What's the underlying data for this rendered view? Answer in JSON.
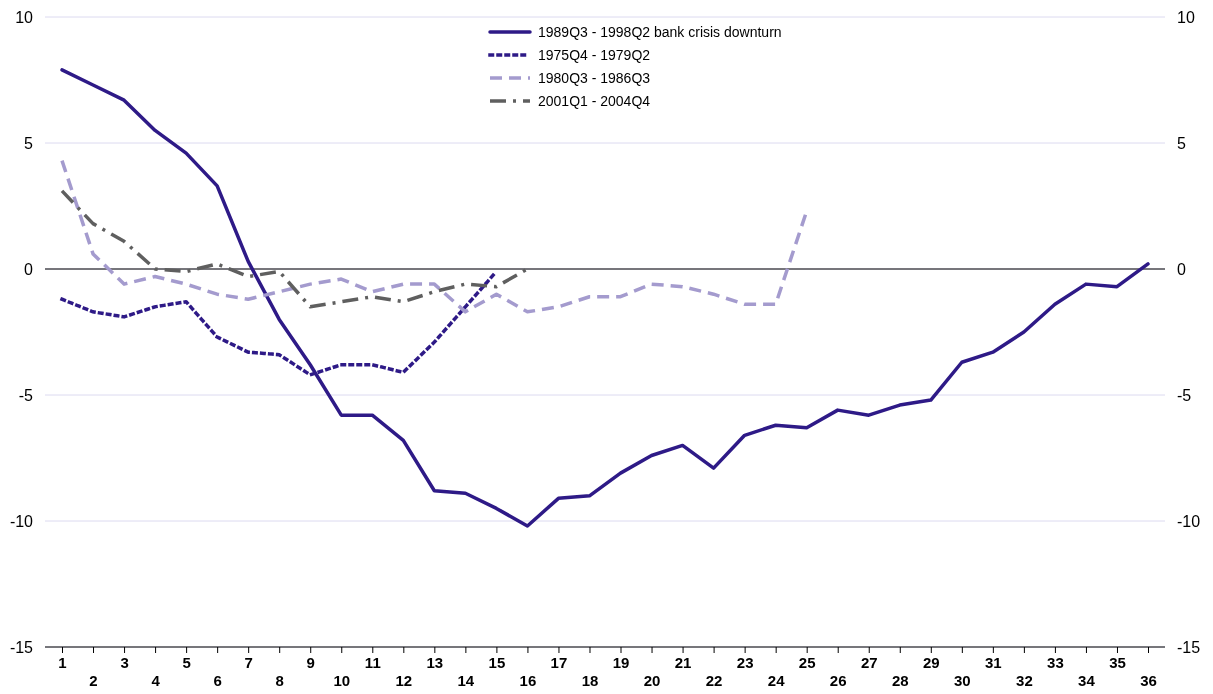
{
  "chart_data": {
    "type": "line",
    "categories": [
      "1",
      "2",
      "3",
      "4",
      "5",
      "6",
      "7",
      "8",
      "9",
      "10",
      "11",
      "12",
      "13",
      "14",
      "15",
      "16",
      "17",
      "18",
      "19",
      "20",
      "21",
      "22",
      "23",
      "24",
      "25",
      "26",
      "27",
      "28",
      "29",
      "30",
      "31",
      "32",
      "33",
      "34",
      "35",
      "36"
    ],
    "series": [
      {
        "name": "1989Q3 - 1998Q2 bank crisis downturn",
        "color": "#2e1a87",
        "line_style": "solid",
        "values": [
          7.9,
          7.3,
          6.7,
          5.5,
          4.6,
          3.3,
          0.3,
          -2.0,
          -3.8,
          -5.8,
          -5.8,
          -6.8,
          -8.8,
          -8.9,
          -9.5,
          -10.2,
          -9.1,
          -9.0,
          -8.1,
          -7.4,
          -7.0,
          -7.9,
          -6.6,
          -6.2,
          -6.3,
          -5.6,
          -5.8,
          -5.4,
          -5.2,
          -3.7,
          -3.3,
          -2.5,
          -1.4,
          -0.6,
          -0.7,
          0.2
        ]
      },
      {
        "name": "1975Q4 - 1979Q2",
        "color": "#2e1a87",
        "line_style": "dotted",
        "values": [
          -1.2,
          -1.7,
          -1.9,
          -1.5,
          -1.3,
          -2.7,
          -3.3,
          -3.4,
          -4.2,
          -3.8,
          -3.8,
          -4.1,
          -2.9,
          -1.5,
          -0.1,
          null,
          null,
          null,
          null,
          null,
          null,
          null,
          null,
          null,
          null,
          null,
          null,
          null,
          null,
          null,
          null,
          null,
          null,
          null,
          null,
          null
        ]
      },
      {
        "name": "1980Q3 - 1986Q3",
        "color": "#a49bce",
        "line_style": "dashed",
        "values": [
          4.3,
          0.6,
          -0.6,
          -0.3,
          -0.6,
          -1.0,
          -1.2,
          -0.9,
          -0.6,
          -0.4,
          -0.9,
          -0.6,
          -0.6,
          -1.7,
          -1.0,
          -1.7,
          -1.5,
          -1.1,
          -1.1,
          -0.6,
          -0.7,
          -1.0,
          -1.4,
          -1.4,
          2.3,
          null,
          null,
          null,
          null,
          null,
          null,
          null,
          null,
          null,
          null,
          null
        ]
      },
      {
        "name": "2001Q1 - 2004Q4",
        "color": "#5f5f5f",
        "line_style": "dashdot",
        "values": [
          3.1,
          1.8,
          1.1,
          0.0,
          -0.1,
          0.2,
          -0.3,
          -0.1,
          -1.5,
          -1.3,
          -1.1,
          -1.3,
          -0.9,
          -0.6,
          -0.7,
          0.0,
          null,
          null,
          null,
          null,
          null,
          null,
          null,
          null,
          null,
          null,
          null,
          null,
          null,
          null,
          null,
          null,
          null,
          null,
          null,
          null
        ]
      }
    ],
    "ylim": [
      -15,
      10
    ],
    "yticks": [
      -15,
      -10,
      -5,
      0,
      5,
      10
    ],
    "y2lim": [
      -15,
      10
    ],
    "y2ticks": [
      -15,
      -10,
      -5,
      0,
      5,
      10
    ],
    "ref_lines": [
      {
        "axis": "y",
        "value": 0,
        "color": "#000000"
      }
    ],
    "grid": "y",
    "legend": "top"
  }
}
